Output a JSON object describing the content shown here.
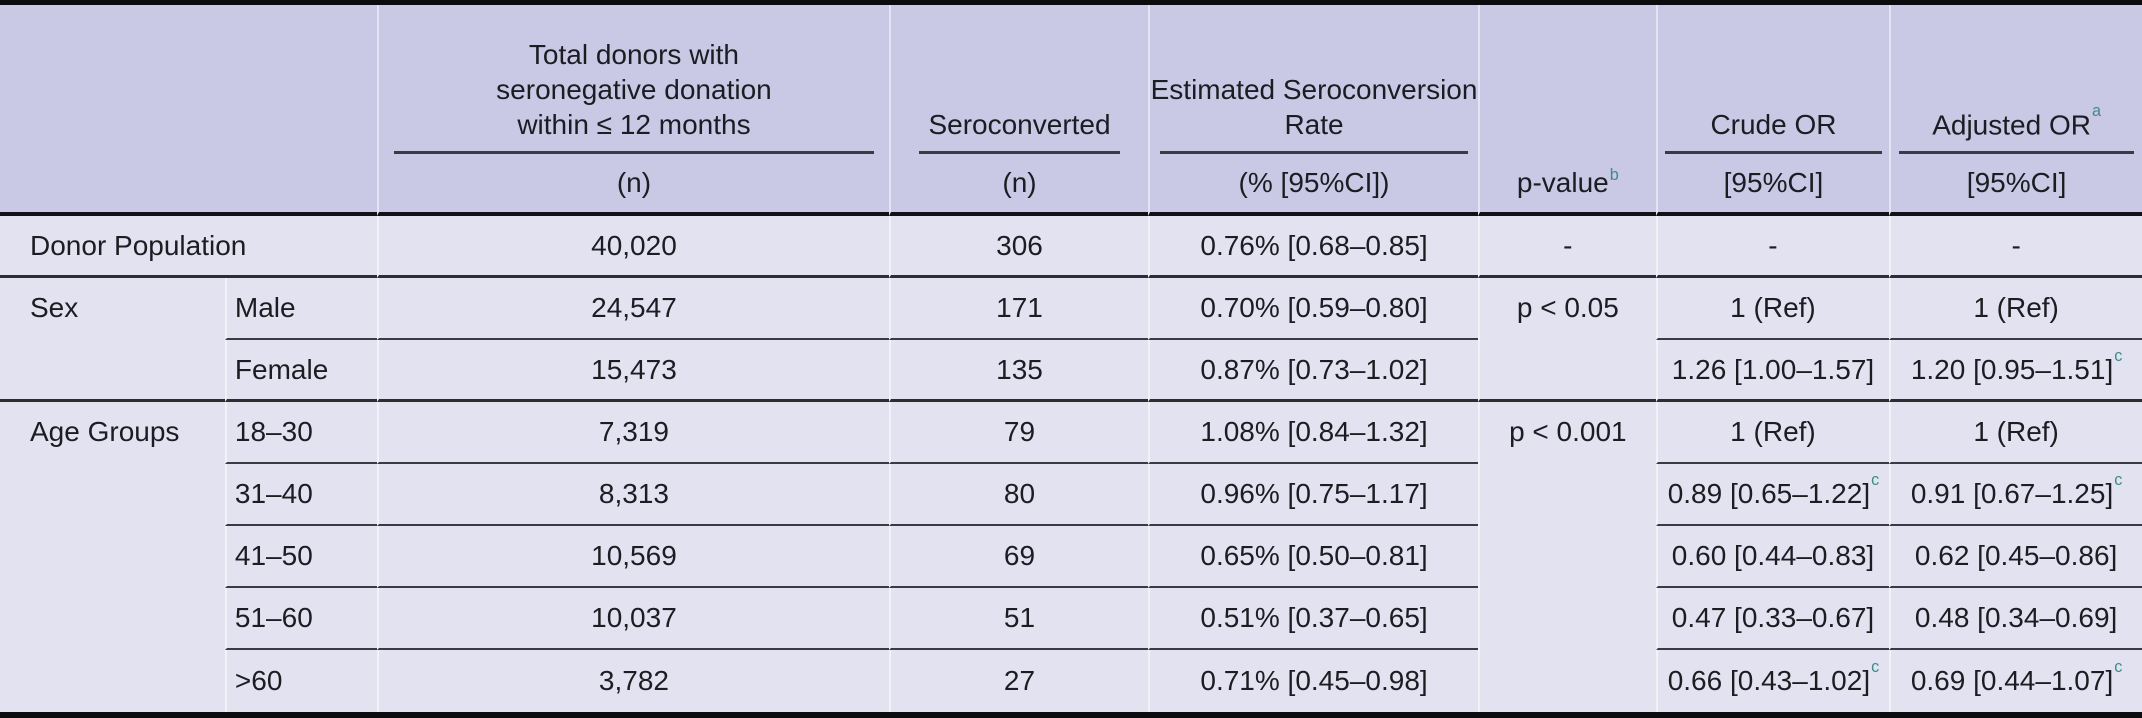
{
  "colors": {
    "header_bg": "#c9c8e5",
    "body_bg": "#e3e2f0",
    "rule_dark": "#3a3a42",
    "rule_section": "#2c2c33",
    "border_black": "#0c0c0e",
    "sup_teal": "#3d8b8b",
    "text": "#1c1c22"
  },
  "header": {
    "total_donors": {
      "lines": [
        "Total donors with",
        "seronegative donation",
        "within ≤ 12 months"
      ],
      "sub": "(n)"
    },
    "seroconverted": {
      "lines": [
        "Seroconverted"
      ],
      "sub": "(n)"
    },
    "rate": {
      "lines": [
        "Estimated Seroconversion",
        "Rate"
      ],
      "sub": "(% [95%CI])"
    },
    "pvalue": {
      "label": "p-value",
      "sup": "b"
    },
    "crude": {
      "lines": [
        "Crude OR"
      ],
      "sub": "[95%CI]"
    },
    "adjusted": {
      "lines": [
        "Adjusted OR"
      ],
      "sup": "a",
      "sub": "[95%CI]"
    }
  },
  "rows": [
    {
      "category": "Donor Population",
      "subgroup": "",
      "n_total": "40,020",
      "n_sero": "306",
      "rate": "0.76% [0.68–0.85]",
      "pvalue": "-",
      "crude_or": "-",
      "adjusted_or": "-"
    },
    {
      "category": "Sex",
      "subgroup": "Male",
      "n_total": "24,547",
      "n_sero": "171",
      "rate": "0.70% [0.59–0.80]",
      "pvalue": "p < 0.05",
      "crude_or": "1 (Ref)",
      "adjusted_or": "1 (Ref)"
    },
    {
      "subgroup": "Female",
      "n_total": "15,473",
      "n_sero": "135",
      "rate": "0.87% [0.73–1.02]",
      "crude_or": "1.26 [1.00–1.57]",
      "adjusted_or": "1.20 [0.95–1.51]",
      "adjusted_sup": "c"
    },
    {
      "category": "Age Groups",
      "subgroup": "18–30",
      "n_total": "7,319",
      "n_sero": "79",
      "rate": "1.08% [0.84–1.32]",
      "pvalue": "p < 0.001",
      "crude_or": "1 (Ref)",
      "adjusted_or": "1 (Ref)"
    },
    {
      "subgroup": "31–40",
      "n_total": "8,313",
      "n_sero": "80",
      "rate": "0.96% [0.75–1.17]",
      "crude_or": "0.89 [0.65–1.22]",
      "crude_sup": "c",
      "adjusted_or": "0.91 [0.67–1.25]",
      "adjusted_sup": "c"
    },
    {
      "subgroup": "41–50",
      "n_total": "10,569",
      "n_sero": "69",
      "rate": "0.65% [0.50–0.81]",
      "crude_or": "0.60 [0.44–0.83]",
      "adjusted_or": "0.62 [0.45–0.86]"
    },
    {
      "subgroup": "51–60",
      "n_total": "10,037",
      "n_sero": "51",
      "rate": "0.51% [0.37–0.65]",
      "crude_or": "0.47 [0.33–0.67]",
      "adjusted_or": "0.48 [0.34–0.69]"
    },
    {
      "subgroup": ">60",
      "n_total": "3,782",
      "n_sero": "27",
      "rate": "0.71% [0.45–0.98]",
      "crude_or": "0.66 [0.43–1.02]",
      "crude_sup": "c",
      "adjusted_or": "0.69 [0.44–1.07]",
      "adjusted_sup": "c"
    }
  ]
}
